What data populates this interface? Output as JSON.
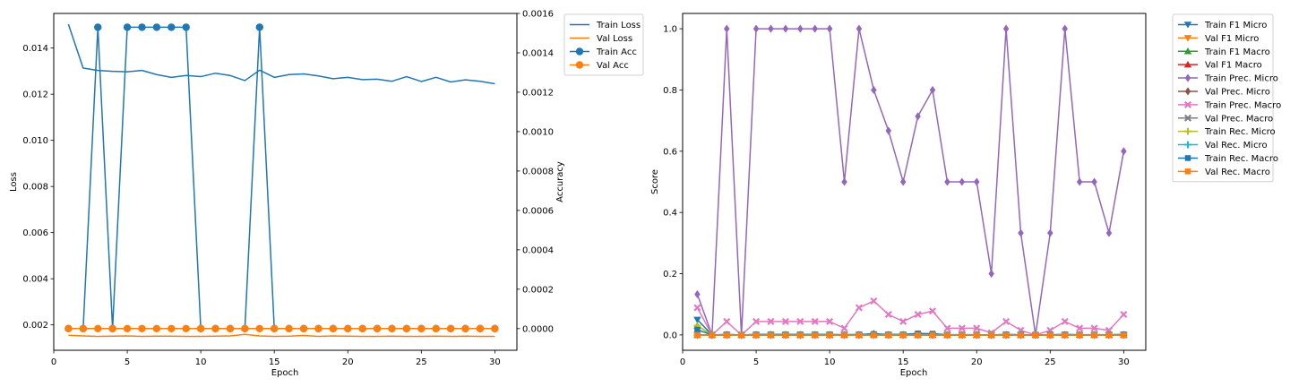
{
  "chart_data": [
    {
      "type": "line",
      "x": [
        1,
        2,
        3,
        4,
        5,
        6,
        7,
        8,
        9,
        10,
        11,
        12,
        13,
        14,
        15,
        16,
        17,
        18,
        19,
        20,
        21,
        22,
        23,
        24,
        25,
        26,
        27,
        28,
        29,
        30
      ],
      "xlabel": "Epoch",
      "ylabel": "Loss",
      "ylabel_right": "Accuracy",
      "xlim": [
        0.0,
        31.5
      ],
      "ylim": [
        0.0009,
        0.0155
      ],
      "ylim_right": [
        -0.00011,
        0.0016
      ],
      "xticks": [
        "0",
        "5",
        "10",
        "15",
        "20",
        "25",
        "30"
      ],
      "yticks": [
        "0.002",
        "0.004",
        "0.006",
        "0.008",
        "0.010",
        "0.012",
        "0.014"
      ],
      "yticks_right": [
        "0.0000",
        "0.0002",
        "0.0004",
        "0.0006",
        "0.0008",
        "0.0010",
        "0.0012",
        "0.0014",
        "0.0016"
      ],
      "grid": false,
      "legend_position": "outside-top-right",
      "series": [
        {
          "name": "Train Loss",
          "axis": "left",
          "color": "#1f77b4",
          "marker": "none",
          "values": [
            0.01503,
            0.01313,
            0.01303,
            0.01299,
            0.01297,
            0.01303,
            0.01285,
            0.01273,
            0.01281,
            0.01276,
            0.01291,
            0.01281,
            0.01259,
            0.01304,
            0.01273,
            0.01285,
            0.01288,
            0.01279,
            0.01267,
            0.01273,
            0.01263,
            0.01265,
            0.01256,
            0.01276,
            0.01255,
            0.01273,
            0.01253,
            0.01262,
            0.01256,
            0.01245
          ]
        },
        {
          "name": "Val Loss",
          "axis": "left",
          "color": "#ff7f0e",
          "marker": "none",
          "values": [
            0.00155,
            0.00152,
            0.0015,
            0.00151,
            0.00152,
            0.0015,
            0.00151,
            0.00151,
            0.0015,
            0.0015,
            0.00151,
            0.00152,
            0.00159,
            0.00152,
            0.0015,
            0.00151,
            0.00154,
            0.0015,
            0.00152,
            0.00151,
            0.0015,
            0.0015,
            0.00151,
            0.0015,
            0.0015,
            0.00151,
            0.0015,
            0.00151,
            0.0015,
            0.0015
          ]
        },
        {
          "name": "Train Acc",
          "axis": "right",
          "color": "#1f77b4",
          "marker": "circle",
          "values": [
            0,
            0,
            0.00153,
            0,
            0.00153,
            0.00153,
            0.00153,
            0.00153,
            0.00153,
            0,
            0,
            0,
            0,
            0.00153,
            0,
            0,
            0,
            0,
            0,
            0,
            0,
            0,
            0,
            0,
            0,
            0,
            0,
            0,
            0,
            0
          ]
        },
        {
          "name": "Val Acc",
          "axis": "right",
          "color": "#ff7f0e",
          "marker": "circle",
          "values": [
            0,
            0,
            0,
            0,
            0,
            0,
            0,
            0,
            0,
            0,
            0,
            0,
            0,
            0,
            0,
            0,
            0,
            0,
            0,
            0,
            0,
            0,
            0,
            0,
            0,
            0,
            0,
            0,
            0,
            0
          ]
        }
      ]
    },
    {
      "type": "line",
      "x": [
        1,
        2,
        3,
        4,
        5,
        6,
        7,
        8,
        9,
        10,
        11,
        12,
        13,
        14,
        15,
        16,
        17,
        18,
        19,
        20,
        21,
        22,
        23,
        24,
        25,
        26,
        27,
        28,
        29,
        30
      ],
      "xlabel": "Epoch",
      "ylabel": "Score",
      "xlim": [
        0.0,
        31.5
      ],
      "ylim": [
        -0.05,
        1.05
      ],
      "xticks": [
        "0",
        "5",
        "10",
        "15",
        "20",
        "25",
        "30"
      ],
      "yticks": [
        "0.0",
        "0.2",
        "0.4",
        "0.6",
        "0.8",
        "1.0"
      ],
      "grid": false,
      "legend_position": "outside-top-right",
      "series": [
        {
          "name": "Train F1 Micro",
          "color": "#1f77b4",
          "marker": "tri_down",
          "values": [
            0.05,
            0,
            0,
            0,
            0,
            0,
            0,
            0,
            0,
            0,
            0,
            0,
            0,
            0,
            0,
            0,
            0,
            0,
            0,
            0,
            0,
            0,
            0,
            0,
            0,
            0,
            0,
            0,
            0,
            0
          ]
        },
        {
          "name": "Val F1 Micro",
          "color": "#ff7f0e",
          "marker": "tri_down",
          "values": [
            0,
            0,
            0,
            0,
            0,
            0,
            0,
            0,
            0,
            0,
            0,
            0,
            0,
            0,
            0,
            0,
            0,
            0,
            0,
            0,
            0,
            0,
            0,
            0,
            0,
            0,
            0,
            0,
            0,
            0
          ]
        },
        {
          "name": "Train F1 Macro",
          "color": "#2ca02c",
          "marker": "tri_up",
          "values": [
            0.03,
            0,
            0,
            0,
            0,
            0,
            0,
            0,
            0,
            0,
            0,
            0,
            0.005,
            0,
            0,
            0,
            0,
            0,
            0,
            0,
            0,
            0,
            0,
            0,
            0,
            0,
            0,
            0,
            0,
            0
          ]
        },
        {
          "name": "Val F1 Macro",
          "color": "#d62728",
          "marker": "tri_up",
          "values": [
            0,
            0,
            0,
            0,
            0,
            0,
            0,
            0,
            0,
            0,
            0,
            0,
            0,
            0,
            0,
            0,
            0,
            0,
            0,
            0,
            0,
            0,
            0,
            0,
            0,
            0,
            0,
            0,
            0,
            0
          ]
        },
        {
          "name": "Train Prec. Micro",
          "color": "#9467bd",
          "marker": "diamond",
          "values": [
            0.133,
            0,
            1.0,
            0,
            1.0,
            1.0,
            1.0,
            1.0,
            1.0,
            1.0,
            0.5,
            1.0,
            0.8,
            0.667,
            0.5,
            0.714,
            0.8,
            0.5,
            0.5,
            0.5,
            0.2,
            1.0,
            0.333,
            0,
            0.333,
            1.0,
            0.5,
            0.5,
            0.333,
            0.6
          ]
        },
        {
          "name": "Val Prec. Micro",
          "color": "#8c564b",
          "marker": "diamond",
          "values": [
            0,
            0,
            0,
            0,
            0,
            0,
            0,
            0,
            0,
            0,
            0,
            0,
            0,
            0,
            0,
            0,
            0,
            0,
            0,
            0,
            0,
            0,
            0,
            0,
            0,
            0,
            0,
            0,
            0,
            0
          ]
        },
        {
          "name": "Train Prec. Macro",
          "color": "#e377c2",
          "marker": "x",
          "values": [
            0.089,
            0,
            0.044,
            0,
            0.044,
            0.044,
            0.044,
            0.044,
            0.044,
            0.044,
            0.022,
            0.089,
            0.111,
            0.067,
            0.044,
            0.067,
            0.078,
            0.022,
            0.022,
            0.022,
            0.007,
            0.044,
            0.015,
            0,
            0.015,
            0.044,
            0.022,
            0.022,
            0.015,
            0.067
          ]
        },
        {
          "name": "Val Prec. Macro",
          "color": "#7f7f7f",
          "marker": "x",
          "values": [
            0,
            0,
            0,
            0,
            0,
            0,
            0,
            0,
            0,
            0,
            0,
            0,
            0,
            0,
            0,
            0,
            0,
            0,
            0,
            0,
            0,
            0,
            0,
            0,
            0,
            0,
            0,
            0,
            0,
            0
          ]
        },
        {
          "name": "Train Rec. Micro",
          "color": "#bcbd22",
          "marker": "plus",
          "values": [
            0.03,
            0,
            0,
            0,
            0,
            0,
            0,
            0,
            0,
            0,
            0,
            0,
            0,
            0,
            0,
            0,
            0,
            0,
            0,
            0,
            0,
            0,
            0,
            0,
            0,
            0,
            0,
            0,
            0,
            0
          ]
        },
        {
          "name": "Val Rec. Micro",
          "color": "#17becf",
          "marker": "plus",
          "values": [
            0,
            0,
            0,
            0,
            0,
            0,
            0,
            0,
            0,
            0,
            0,
            0,
            0,
            0,
            0,
            0,
            0,
            0,
            0,
            0,
            0,
            0,
            0,
            0,
            0,
            0,
            0,
            0,
            0,
            0
          ]
        },
        {
          "name": "Train Rec. Macro",
          "color": "#1f77b4",
          "marker": "square",
          "values": [
            0.017,
            0,
            0.002,
            0,
            0.002,
            0.002,
            0.002,
            0.002,
            0.002,
            0.002,
            0.001,
            0.002,
            0.003,
            0.002,
            0.002,
            0.005,
            0.004,
            0.001,
            0.001,
            0.001,
            0.0,
            0.002,
            0.001,
            0,
            0.001,
            0.002,
            0.001,
            0.001,
            0.001,
            0.002
          ]
        },
        {
          "name": "Val Rec. Macro",
          "color": "#ff7f0e",
          "marker": "square",
          "values": [
            0,
            0,
            0,
            0,
            0,
            0,
            0,
            0,
            0,
            0,
            0,
            0,
            0,
            0,
            0,
            0,
            0,
            0,
            0,
            0,
            0,
            0,
            0,
            0,
            0,
            0,
            0,
            0,
            0,
            0
          ]
        }
      ]
    }
  ]
}
